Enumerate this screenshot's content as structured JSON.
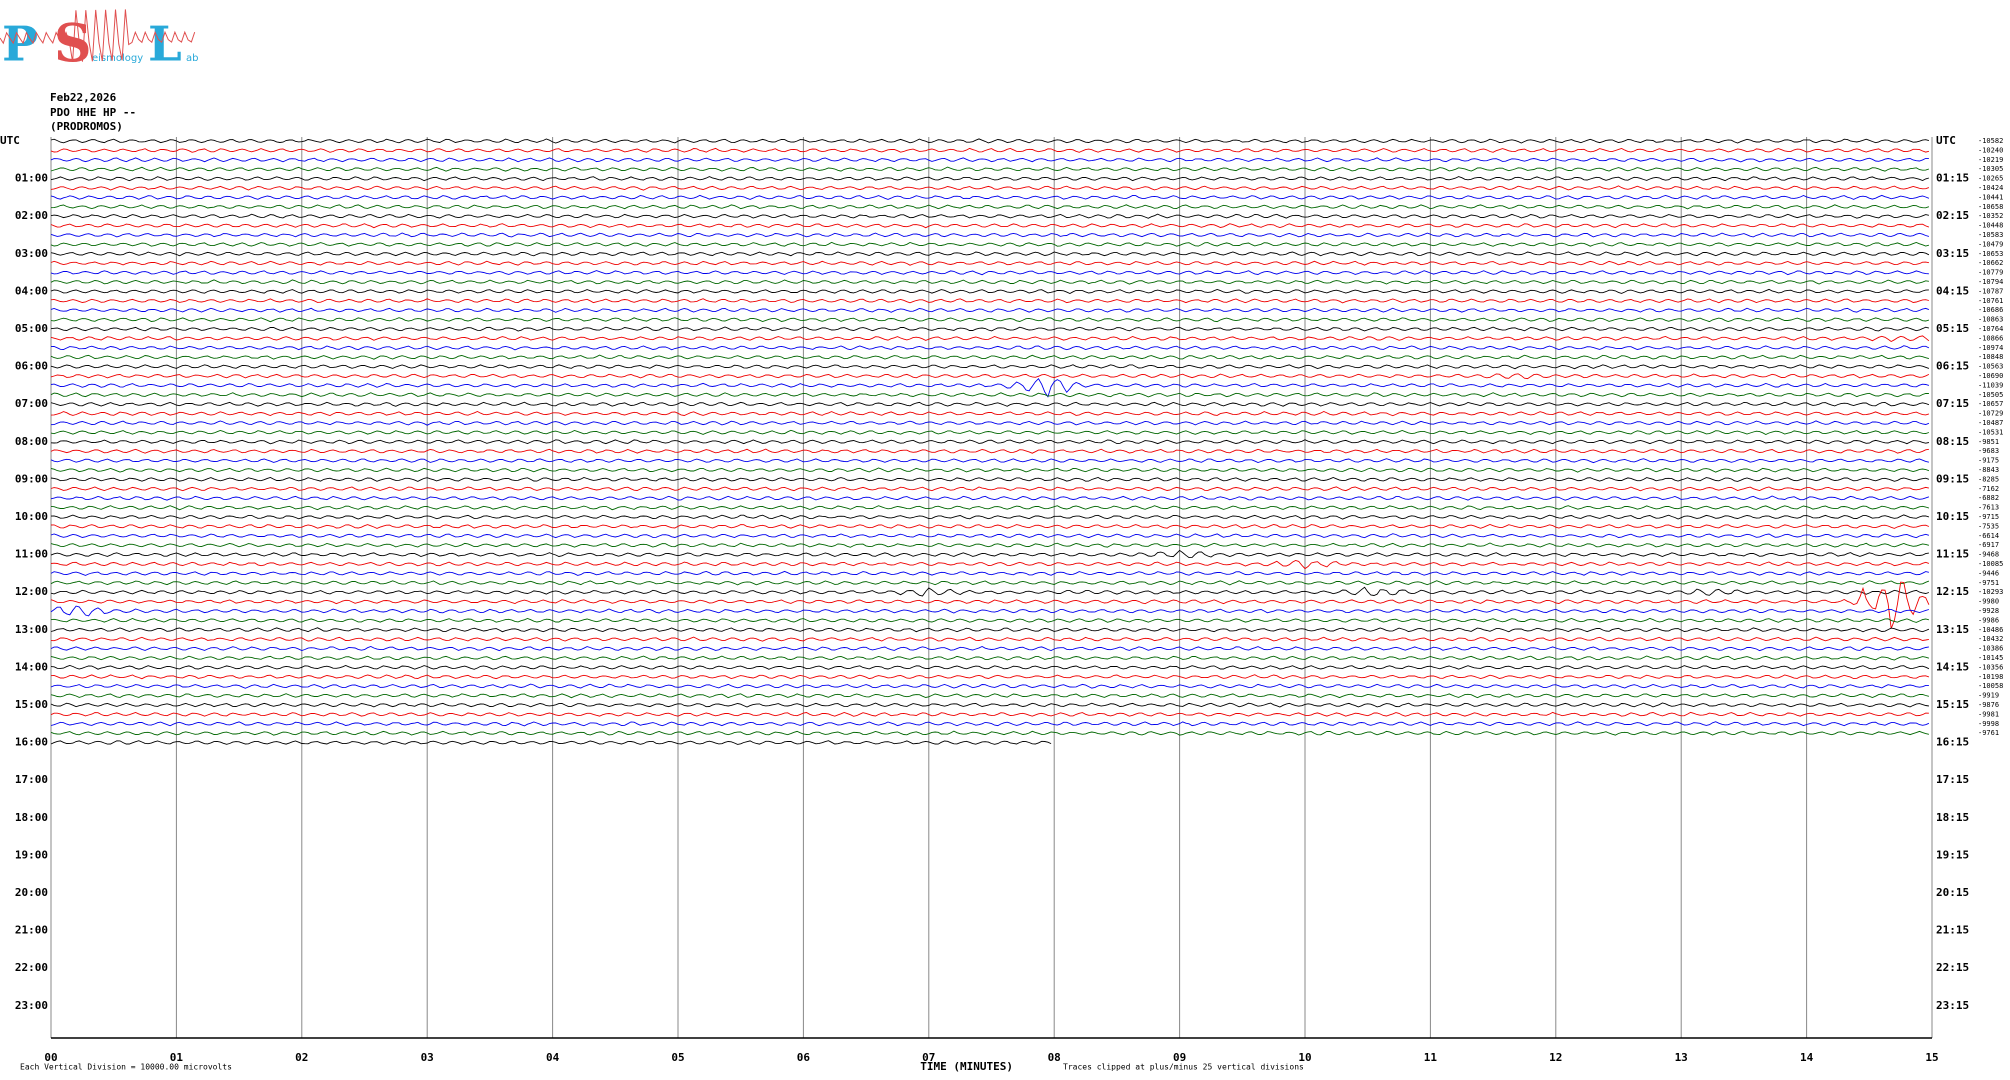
{
  "logo": {
    "letters": [
      "P",
      "S",
      "L"
    ],
    "small": [
      "eismology",
      "ab"
    ]
  },
  "header": {
    "date": "Feb22,2026",
    "station": "PDO HHE HP --",
    "name": "(PRODROMOS)"
  },
  "left_labels": [
    "UTC",
    "01:00",
    "02:00",
    "03:00",
    "04:00",
    "05:00",
    "06:00",
    "07:00",
    "08:00",
    "09:00",
    "10:00",
    "11:00",
    "12:00",
    "13:00",
    "14:00",
    "15:00",
    "16:00",
    "17:00",
    "18:00",
    "19:00",
    "20:00",
    "21:00",
    "22:00",
    "23:00"
  ],
  "right_labels": [
    "UTC",
    "01:15",
    "02:15",
    "03:15",
    "04:15",
    "05:15",
    "06:15",
    "07:15",
    "08:15",
    "09:15",
    "10:15",
    "11:15",
    "12:15",
    "13:15",
    "14:15",
    "15:15",
    "16:15",
    "17:15",
    "18:15",
    "19:15",
    "20:15",
    "21:15",
    "22:15",
    "23:15"
  ],
  "offsets": [
    "-10582",
    "-10240",
    "-10219",
    "-10305",
    "-10265",
    "-10424",
    "-10441",
    "-10658",
    "-10352",
    "-10448",
    "-10583",
    "-10479",
    "-10653",
    "-10662",
    "-10779",
    "-10794",
    "-10787",
    "-10761",
    "-10686",
    "-10863",
    "-10764",
    "-10866",
    "-10974",
    "-10848",
    "-10563",
    "-10690",
    "-11039",
    "-10505",
    "-10657",
    "-10729",
    "-10487",
    "-10531",
    "-9851",
    "-9683",
    "-9175",
    "-8843",
    "-8285",
    "-7162",
    "-6882",
    "-7613",
    "-9715",
    "-7535",
    "-6614",
    "-6917",
    "-9468",
    "-10085",
    "-9446",
    "-9751",
    "-10293",
    "-9980",
    "-9928",
    "-9986",
    "-10486",
    "-10432",
    "-10386",
    "-10145",
    "-10356",
    "-10198",
    "-10058",
    "-9919",
    "-9876",
    "-9981",
    "-9998",
    "-9761"
  ],
  "x_ticks": [
    "00",
    "01",
    "02",
    "03",
    "04",
    "05",
    "06",
    "07",
    "08",
    "09",
    "10",
    "11",
    "12",
    "13",
    "14",
    "15"
  ],
  "footer": {
    "x_label": "TIME (MINUTES)",
    "division": "Each Vertical Division = 10000.00 microvolts",
    "clip": "Traces clipped at plus/minus 25 vertical divisions"
  }
}
